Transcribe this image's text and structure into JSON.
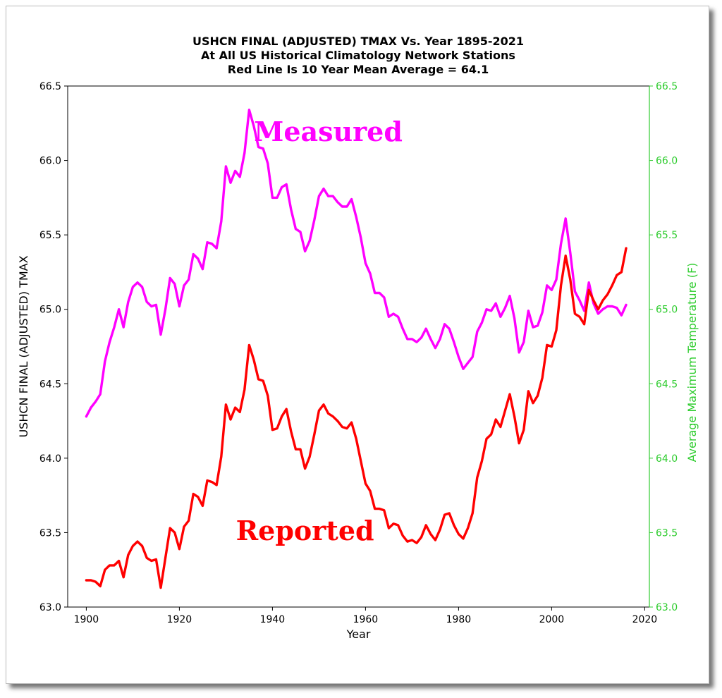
{
  "chart_data": {
    "type": "line",
    "title": "USHCN FINAL (ADJUSTED) TMAX Vs. Year 1895-2021",
    "subtitle_lines": [
      "At All US Historical Climatology Network Stations",
      "Red Line Is 10 Year Mean  Average = 64.1"
    ],
    "xlabel": "Year",
    "ylabel": "USHCN FINAL (ADJUSTED) TMAX",
    "ylabel_right": "Average Maximum Temperature (F)",
    "xlim": [
      1896,
      2021
    ],
    "ylim": [
      63.0,
      66.5
    ],
    "x_ticks": [
      "1900",
      "1920",
      "1940",
      "1960",
      "1980",
      "2000",
      "2020"
    ],
    "y_ticks": [
      "63.0",
      "63.5",
      "64.0",
      "64.5",
      "65.0",
      "65.5",
      "66.0",
      "66.5"
    ],
    "grid": false,
    "colors": {
      "measured": "#ff00ff",
      "reported": "#ff0000",
      "right_axis": "#2ecc2e"
    },
    "annotations": [
      {
        "text": "Measured",
        "color": "#ff00ff",
        "x": 1952,
        "y": 66.13
      },
      {
        "text": "Reported",
        "color": "#ff0000",
        "x": 1947,
        "y": 63.45
      }
    ],
    "series": [
      {
        "key": "measured",
        "x": [
          1900,
          1901,
          1902,
          1903,
          1904,
          1905,
          1906,
          1907,
          1908,
          1909,
          1910,
          1911,
          1912,
          1913,
          1914,
          1915,
          1916,
          1917,
          1918,
          1919,
          1920,
          1921,
          1922,
          1923,
          1924,
          1925,
          1926,
          1927,
          1928,
          1929,
          1930,
          1931,
          1932,
          1933,
          1934,
          1935,
          1936,
          1937,
          1938,
          1939,
          1940,
          1941,
          1942,
          1943,
          1944,
          1945,
          1946,
          1947,
          1948,
          1949,
          1950,
          1951,
          1952,
          1953,
          1954,
          1955,
          1956,
          1957,
          1958,
          1959,
          1960,
          1961,
          1962,
          1963,
          1964,
          1965,
          1966,
          1967,
          1968,
          1969,
          1970,
          1971,
          1972,
          1973,
          1974,
          1975,
          1976,
          1977,
          1978,
          1979,
          1980,
          1981,
          1982,
          1983,
          1984,
          1985,
          1986,
          1987,
          1988,
          1989,
          1990,
          1991,
          1992,
          1993,
          1994,
          1995,
          1996,
          1997,
          1998,
          1999,
          2000,
          2001,
          2002,
          2003,
          2004,
          2005,
          2006,
          2007,
          2008,
          2009,
          2010,
          2011,
          2012,
          2013,
          2014,
          2015,
          2016
        ],
        "values": [
          64.28,
          64.34,
          64.38,
          64.43,
          64.65,
          64.78,
          64.88,
          65.0,
          64.88,
          65.05,
          65.15,
          65.18,
          65.15,
          65.05,
          65.02,
          65.03,
          64.83,
          65.0,
          65.21,
          65.17,
          65.02,
          65.16,
          65.2,
          65.37,
          65.34,
          65.27,
          65.45,
          65.44,
          65.41,
          65.59,
          65.96,
          65.85,
          65.93,
          65.89,
          66.05,
          66.34,
          66.23,
          66.09,
          66.08,
          65.98,
          65.75,
          65.75,
          65.82,
          65.84,
          65.67,
          65.54,
          65.52,
          65.39,
          65.46,
          65.6,
          65.76,
          65.81,
          65.76,
          65.76,
          65.72,
          65.69,
          65.69,
          65.74,
          65.62,
          65.48,
          65.31,
          65.24,
          65.11,
          65.11,
          65.08,
          64.95,
          64.97,
          64.95,
          64.87,
          64.8,
          64.8,
          64.78,
          64.81,
          64.87,
          64.8,
          64.74,
          64.8,
          64.9,
          64.87,
          64.78,
          64.68,
          64.6,
          64.64,
          64.68,
          64.85,
          64.91,
          65.0,
          64.99,
          65.04,
          64.95,
          65.01,
          65.09,
          64.94,
          64.71,
          64.78,
          64.99,
          64.88,
          64.89,
          64.98,
          65.16,
          65.13,
          65.2,
          65.44,
          65.61,
          65.38,
          65.12,
          65.06,
          64.99,
          65.18,
          65.04,
          64.97,
          65.0,
          65.02,
          65.02,
          65.01,
          64.96,
          65.03
        ]
      },
      {
        "key": "reported",
        "x": [
          1900,
          1901,
          1902,
          1903,
          1904,
          1905,
          1906,
          1907,
          1908,
          1909,
          1910,
          1911,
          1912,
          1913,
          1914,
          1915,
          1916,
          1917,
          1918,
          1919,
          1920,
          1921,
          1922,
          1923,
          1924,
          1925,
          1926,
          1927,
          1928,
          1929,
          1930,
          1931,
          1932,
          1933,
          1934,
          1935,
          1936,
          1937,
          1938,
          1939,
          1940,
          1941,
          1942,
          1943,
          1944,
          1945,
          1946,
          1947,
          1948,
          1949,
          1950,
          1951,
          1952,
          1953,
          1954,
          1955,
          1956,
          1957,
          1958,
          1959,
          1960,
          1961,
          1962,
          1963,
          1964,
          1965,
          1966,
          1967,
          1968,
          1969,
          1970,
          1971,
          1972,
          1973,
          1974,
          1975,
          1976,
          1977,
          1978,
          1979,
          1980,
          1981,
          1982,
          1983,
          1984,
          1985,
          1986,
          1987,
          1988,
          1989,
          1990,
          1991,
          1992,
          1993,
          1994,
          1995,
          1996,
          1997,
          1998,
          1999,
          2000,
          2001,
          2002,
          2003,
          2004,
          2005,
          2006,
          2007,
          2008,
          2009,
          2010,
          2011,
          2012,
          2013,
          2014,
          2015,
          2016
        ],
        "values": [
          63.18,
          63.18,
          63.17,
          63.14,
          63.25,
          63.28,
          63.28,
          63.31,
          63.2,
          63.35,
          63.41,
          63.44,
          63.41,
          63.33,
          63.31,
          63.32,
          63.13,
          63.33,
          63.53,
          63.5,
          63.39,
          63.54,
          63.58,
          63.76,
          63.74,
          63.68,
          63.85,
          63.84,
          63.82,
          64.01,
          64.36,
          64.26,
          64.34,
          64.31,
          64.46,
          64.76,
          64.66,
          64.53,
          64.52,
          64.42,
          64.19,
          64.2,
          64.28,
          64.33,
          64.18,
          64.06,
          64.06,
          63.93,
          64.01,
          64.16,
          64.32,
          64.36,
          64.3,
          64.28,
          64.25,
          64.21,
          64.2,
          64.24,
          64.13,
          63.98,
          63.83,
          63.78,
          63.66,
          63.66,
          63.65,
          63.53,
          63.56,
          63.55,
          63.48,
          63.44,
          63.45,
          63.43,
          63.47,
          63.55,
          63.49,
          63.45,
          63.52,
          63.62,
          63.63,
          63.55,
          63.49,
          63.46,
          63.53,
          63.63,
          63.87,
          63.98,
          64.13,
          64.16,
          64.26,
          64.21,
          64.32,
          64.43,
          64.28,
          64.1,
          64.19,
          64.45,
          64.37,
          64.42,
          64.54,
          64.76,
          64.75,
          64.86,
          65.16,
          65.36,
          65.2,
          64.97,
          64.95,
          64.9,
          65.13,
          65.06,
          65.0,
          65.06,
          65.1,
          65.16,
          65.23,
          65.25,
          65.41
        ]
      }
    ]
  }
}
